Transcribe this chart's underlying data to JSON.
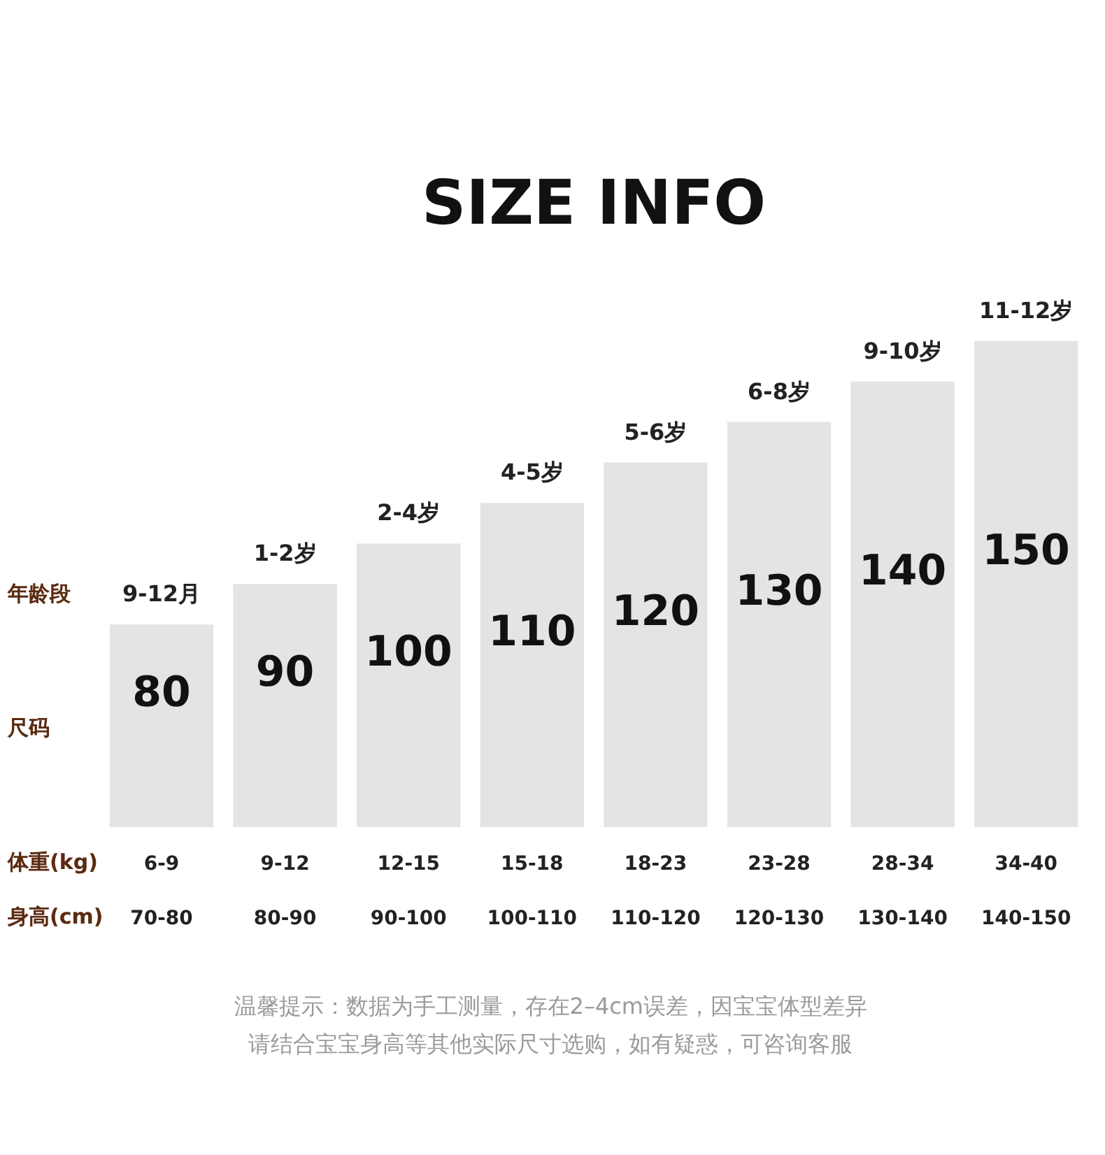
{
  "chart_data": {
    "type": "bar",
    "title": "SIZE INFO",
    "grid": false,
    "legend": false,
    "tick_labels": false,
    "data_labels": true,
    "color": "#e4e4e4",
    "categories": [
      "9-12月",
      "1-2岁",
      "2-4岁",
      "4-5岁",
      "5-6岁",
      "6-8岁",
      "9-10岁",
      "11-12岁"
    ],
    "values": [
      80,
      90,
      100,
      110,
      120,
      130,
      140,
      150
    ],
    "ylim": [
      30,
      234
    ],
    "annotations": [
      "年龄段",
      "尺码",
      "体重(kg)",
      "身高(cm)",
      "6-9",
      "9-12",
      "12-15",
      "15-18",
      "18-23",
      "23-28",
      "28-34",
      "34-40",
      "70-80",
      "80-90",
      "90-100",
      "100-110",
      "110-120",
      "120-130",
      "130-140",
      "140-150",
      "温馨提示：数据为手工测量，存在2–4cm误差，因宝宝体型差异",
      "请结合宝宝身高等其他实际尺寸选购，如有疑惑，可咨询客服"
    ]
  }
}
